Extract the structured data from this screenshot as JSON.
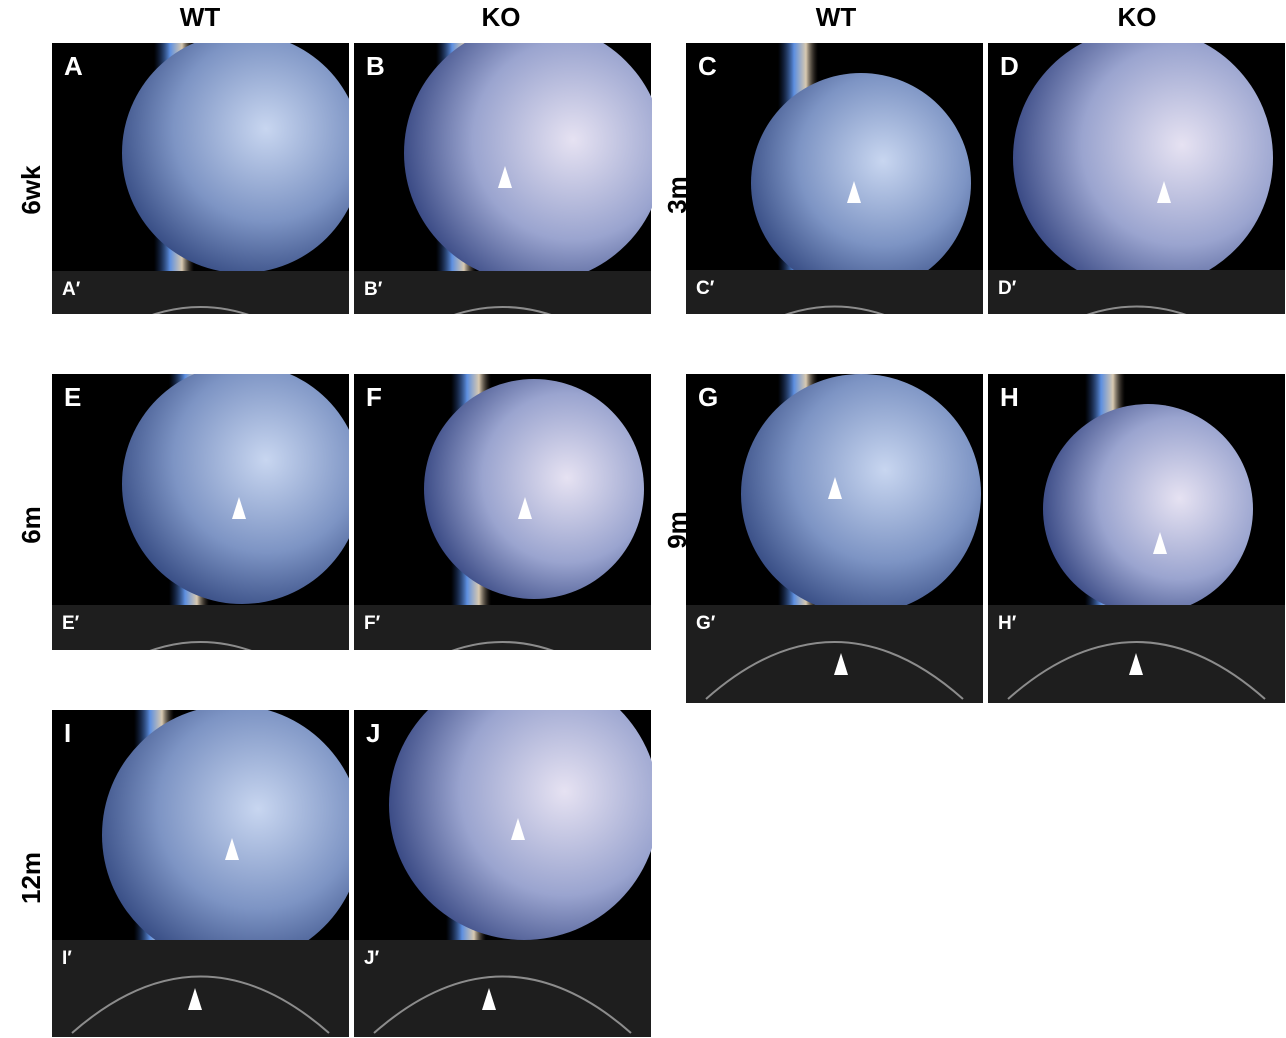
{
  "column_headers": [
    "WT",
    "KO",
    "WT",
    "KO"
  ],
  "row_labels": [
    "6wk",
    "3m",
    "6m",
    "9m",
    "12m"
  ],
  "panels": [
    {
      "label": "A",
      "oct_label": "A′"
    },
    {
      "label": "B",
      "oct_label": "B′"
    },
    {
      "label": "C",
      "oct_label": "C′"
    },
    {
      "label": "D",
      "oct_label": "D′"
    },
    {
      "label": "E",
      "oct_label": "E′"
    },
    {
      "label": "F",
      "oct_label": "F′"
    },
    {
      "label": "G",
      "oct_label": "G′"
    },
    {
      "label": "H",
      "oct_label": "H′"
    },
    {
      "label": "I",
      "oct_label": "I′"
    },
    {
      "label": "J",
      "oct_label": "J′"
    }
  ]
}
